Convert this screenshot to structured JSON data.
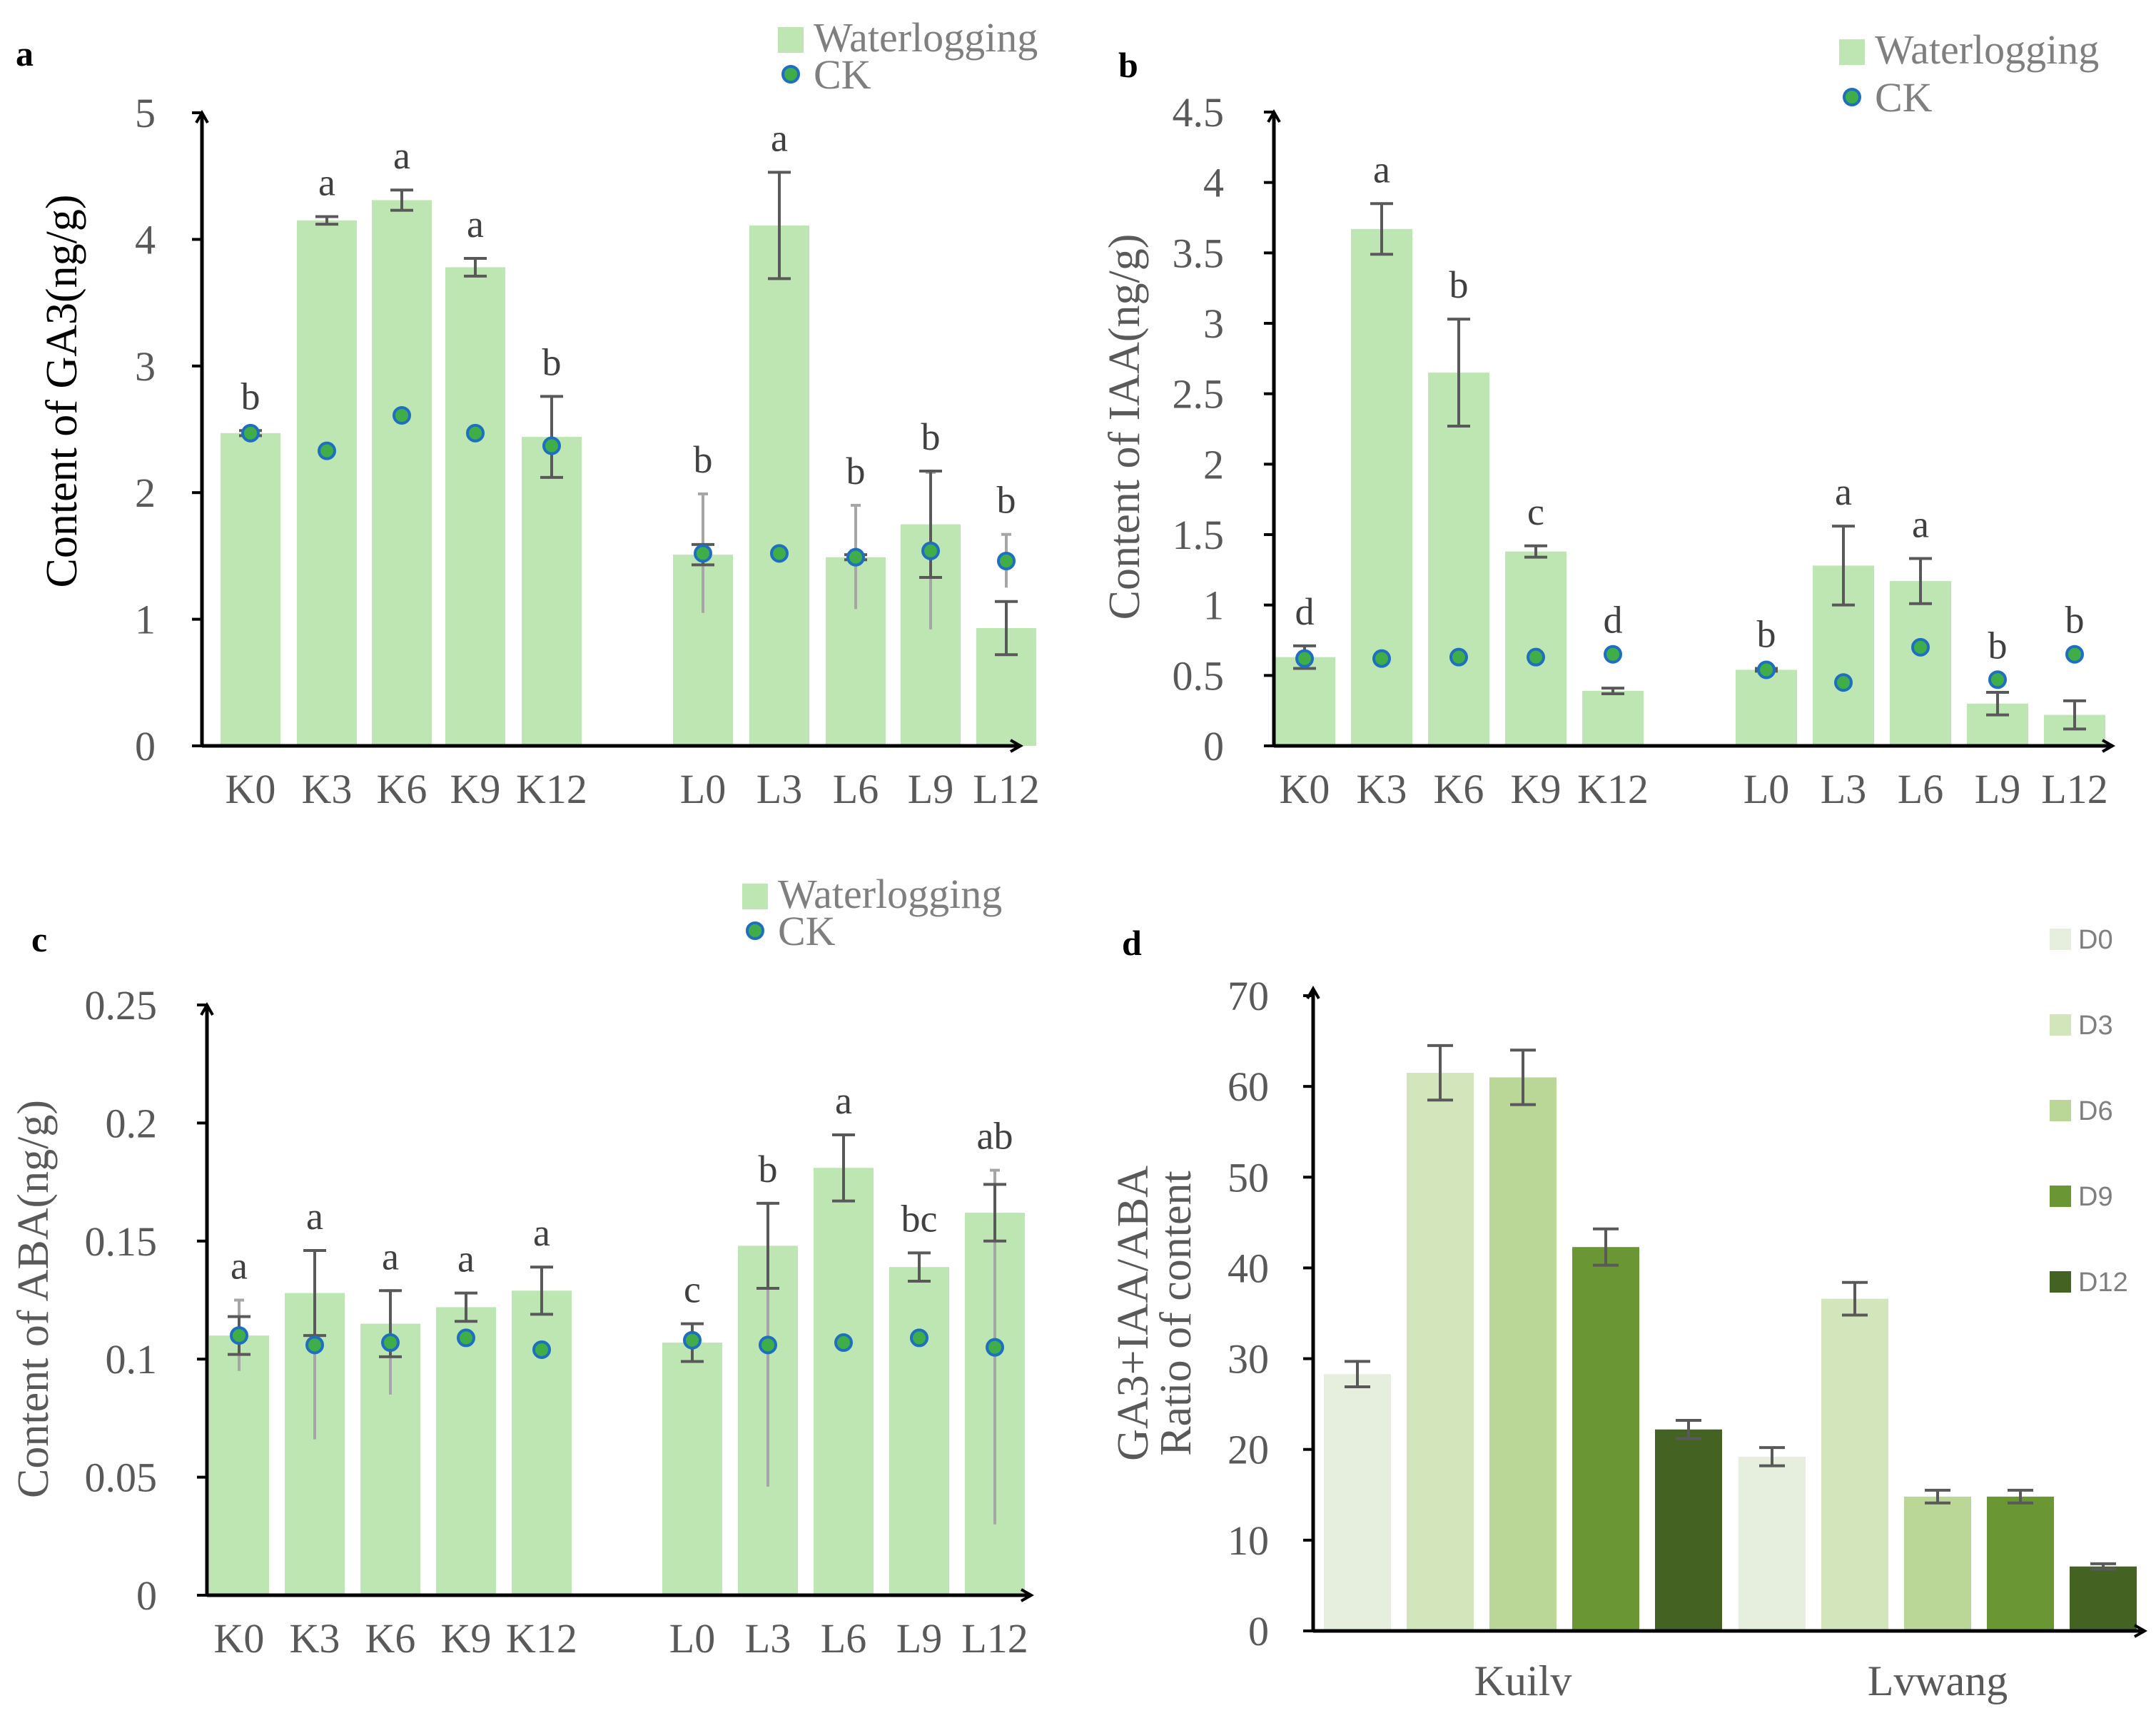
{
  "colors": {
    "bar": "#bde6b3",
    "dot_fill": "#3fae49",
    "dot_stroke": "#1f6fc0",
    "error": "#595959",
    "error_ck": "#a6a6a6",
    "axis": "#000000",
    "d_series": [
      "#e6efde",
      "#d2e5bb",
      "#bad797",
      "#6a9634",
      "#446222"
    ]
  },
  "chart_data": [
    {
      "panel": "a",
      "type": "bar",
      "ylabel": "Content of GA3(ng/g)",
      "ylim": [
        0,
        5
      ],
      "yticks": [
        "0",
        "1",
        "2",
        "3",
        "4",
        "5"
      ],
      "categories": [
        "K0",
        "K3",
        "K6",
        "K9",
        "K12",
        "L0",
        "L3",
        "L6",
        "L9",
        "L12"
      ],
      "legend": [
        "Waterlogging",
        "CK"
      ],
      "series": [
        {
          "name": "Waterlogging",
          "values": [
            2.47,
            4.15,
            4.31,
            3.78,
            2.44,
            1.51,
            4.11,
            1.49,
            1.75,
            0.93
          ],
          "errors": [
            0.02,
            0.03,
            0.08,
            0.07,
            0.32,
            0.08,
            0.42,
            0.02,
            0.42,
            0.21
          ]
        },
        {
          "name": "CK",
          "values": [
            2.47,
            2.33,
            2.61,
            2.47,
            2.37,
            1.52,
            1.52,
            1.49,
            1.54,
            1.46
          ],
          "errors": [
            0.0,
            0.0,
            0.0,
            0.0,
            0.0,
            0.47,
            0.0,
            0.41,
            0.62,
            0.21
          ]
        }
      ],
      "letters": [
        "b",
        "a",
        "a",
        "a",
        "b",
        "b",
        "a",
        "b",
        "b",
        "b"
      ]
    },
    {
      "panel": "b",
      "type": "bar",
      "ylabel": "Content of IAA(ng/g)",
      "ylim": [
        0,
        4.5
      ],
      "yticks": [
        "0",
        "0.5",
        "1",
        "1.5",
        "2",
        "2.5",
        "3",
        "3.5",
        "4",
        "4.5"
      ],
      "categories": [
        "K0",
        "K3",
        "K6",
        "K9",
        "K12",
        "L0",
        "L3",
        "L6",
        "L9",
        "L12"
      ],
      "legend": [
        "Waterlogging",
        "CK"
      ],
      "series": [
        {
          "name": "Waterlogging",
          "values": [
            0.63,
            3.67,
            2.65,
            1.38,
            0.39,
            0.54,
            1.28,
            1.17,
            0.3,
            0.22
          ],
          "errors": [
            0.08,
            0.18,
            0.38,
            0.04,
            0.02,
            0.01,
            0.28,
            0.16,
            0.08,
            0.1
          ]
        },
        {
          "name": "CK",
          "values": [
            0.62,
            0.62,
            0.63,
            0.63,
            0.65,
            0.54,
            0.45,
            0.7,
            0.47,
            0.65
          ],
          "errors": [
            0,
            0,
            0,
            0,
            0,
            0,
            0,
            0,
            0,
            0
          ]
        }
      ],
      "letters": [
        "d",
        "a",
        "b",
        "c",
        "d",
        "b",
        "a",
        "a",
        "b",
        "b"
      ]
    },
    {
      "panel": "c",
      "type": "bar",
      "ylabel": "Content of ABA(ng/g)",
      "ylim": [
        0,
        0.25
      ],
      "yticks": [
        "0",
        "0.05",
        "0.1",
        "0.15",
        "0.2",
        "0.25"
      ],
      "categories": [
        "K0",
        "K3",
        "K6",
        "K9",
        "K12",
        "L0",
        "L3",
        "L6",
        "L9",
        "L12"
      ],
      "legend": [
        "Waterlogging",
        "CK"
      ],
      "series": [
        {
          "name": "Waterlogging",
          "values": [
            0.11,
            0.128,
            0.115,
            0.122,
            0.129,
            0.107,
            0.148,
            0.181,
            0.139,
            0.162
          ],
          "errors": [
            0.008,
            0.018,
            0.014,
            0.006,
            0.01,
            0.008,
            0.018,
            0.014,
            0.006,
            0.012
          ]
        },
        {
          "name": "CK",
          "values": [
            0.11,
            0.106,
            0.107,
            0.109,
            0.104,
            0.108,
            0.106,
            0.107,
            0.109,
            0.105
          ],
          "errors": [
            0.015,
            0.04,
            0.022,
            0,
            0,
            0,
            0.06,
            0,
            0,
            0.075
          ]
        }
      ],
      "letters": [
        "a",
        "a",
        "a",
        "a",
        "a",
        "c",
        "b",
        "a",
        "bc",
        "ab"
      ]
    },
    {
      "panel": "d",
      "type": "bar",
      "ylabel": [
        "GA3+IAA/ABA",
        "Ratio of content"
      ],
      "ylim": [
        0,
        70
      ],
      "yticks": [
        "0",
        "10",
        "20",
        "30",
        "40",
        "50",
        "60",
        "70"
      ],
      "categories": [
        "Kuilv",
        "Lvwang"
      ],
      "series": [
        {
          "name": "D0",
          "values": [
            28.3,
            19.2
          ],
          "errors": [
            1.4,
            1.0
          ]
        },
        {
          "name": "D3",
          "values": [
            61.5,
            36.6
          ],
          "errors": [
            3.0,
            1.8
          ]
        },
        {
          "name": "D6",
          "values": [
            61.0,
            14.8
          ],
          "errors": [
            3.0,
            0.7
          ]
        },
        {
          "name": "D9",
          "values": [
            42.3,
            14.8
          ],
          "errors": [
            2.0,
            0.7
          ]
        },
        {
          "name": "D12",
          "values": [
            22.2,
            7.1
          ],
          "errors": [
            1.0,
            0.3
          ]
        }
      ]
    }
  ]
}
